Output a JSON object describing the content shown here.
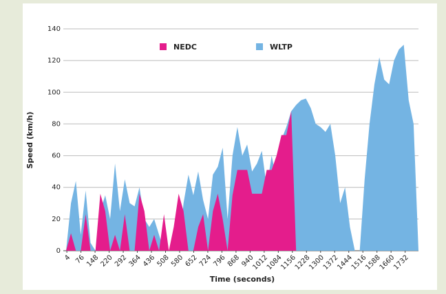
{
  "chart_data": {
    "type": "area",
    "y_label": "Speed (km/h)",
    "x_label": "Time (seconds)",
    "x": [
      0,
      25,
      50,
      75,
      100,
      125,
      150,
      175,
      200,
      225,
      250,
      275,
      300,
      325,
      350,
      375,
      400,
      425,
      450,
      475,
      500,
      525,
      550,
      575,
      600,
      625,
      650,
      675,
      700,
      725,
      750,
      775,
      800,
      825,
      850,
      875,
      900,
      925,
      950,
      975,
      1000,
      1025,
      1050,
      1075,
      1100,
      1125,
      1150,
      1175,
      1200,
      1225,
      1250,
      1275,
      1300,
      1325,
      1350,
      1375,
      1400,
      1425,
      1450,
      1475,
      1500,
      1525,
      1550,
      1575,
      1600,
      1625,
      1650,
      1675,
      1700,
      1725,
      1750,
      1775,
      1800
    ],
    "series": [
      {
        "name": "WLTP",
        "color": "#74b4e3",
        "values": [
          0,
          30,
          44,
          10,
          38,
          5,
          0,
          25,
          35,
          20,
          55,
          25,
          45,
          30,
          28,
          40,
          20,
          15,
          20,
          10,
          0,
          0,
          0,
          0,
          30,
          48,
          35,
          50,
          32,
          20,
          48,
          53,
          65,
          20,
          60,
          78,
          60,
          67,
          50,
          55,
          63,
          40,
          60,
          45,
          70,
          78,
          88,
          92,
          95,
          96,
          90,
          80,
          78,
          75,
          80,
          60,
          30,
          40,
          15,
          0,
          0,
          45,
          80,
          105,
          122,
          108,
          105,
          120,
          127,
          130,
          95,
          80,
          0
        ]
      },
      {
        "name": "NEDC",
        "color": "#e41d8c",
        "values": [
          0,
          11,
          0,
          0,
          23,
          0,
          0,
          36,
          25,
          0,
          10,
          0,
          23,
          0,
          0,
          36,
          25,
          0,
          10,
          0,
          23,
          0,
          15,
          36,
          25,
          0,
          0,
          15,
          23,
          0,
          25,
          36,
          20,
          0,
          35,
          51,
          51,
          51,
          36,
          36,
          36,
          51,
          51,
          60,
          73,
          73,
          88,
          0,
          null,
          null,
          null,
          null,
          null,
          null,
          null,
          null,
          null,
          null,
          null,
          null,
          null,
          null,
          null,
          null,
          null,
          null,
          null,
          null,
          null,
          null,
          null,
          null,
          null
        ]
      }
    ],
    "xlim": [
      0,
      1800
    ],
    "xticks": [
      4,
      76,
      148,
      220,
      292,
      364,
      436,
      508,
      580,
      652,
      724,
      796,
      868,
      940,
      1012,
      1084,
      1156,
      1228,
      1300,
      1372,
      1444,
      1516,
      1588,
      1660,
      1732
    ],
    "ylim": [
      0,
      140
    ],
    "yticks": [
      0,
      20,
      40,
      60,
      80,
      100,
      120,
      140
    ],
    "grid": true
  }
}
